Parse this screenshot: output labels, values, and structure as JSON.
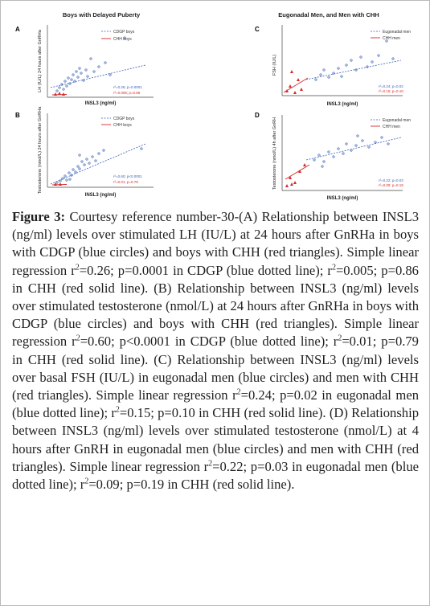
{
  "figure": {
    "panels": [
      {
        "id": "A",
        "section_title": "Boys with Delayed Puberty",
        "xlabel": "INSL3 (ng/ml)",
        "ylabel": "LH (IU/L) 24 hours after GnRHa",
        "legend": [
          "CDGP boys",
          "CHH boys"
        ],
        "stats": [
          "r²=0.26; p=0.0001",
          "r²=0.005; p=0.86"
        ]
      },
      {
        "id": "B",
        "section_title": "",
        "xlabel": "INSL3 (ng/ml)",
        "ylabel": "Testosterone (nmol/L) 24 hours after GnRHa",
        "legend": [
          "CDGP boys",
          "CHH boys"
        ],
        "stats": [
          "r²=0.60; p<0.0001",
          "r²=0.01; p=0.79"
        ]
      },
      {
        "id": "C",
        "section_title": "Eugonadal Men, and Men with CHH",
        "xlabel": "INSL3 (ng/ml)",
        "ylabel": "FSH (IU/L)",
        "legend": [
          "Eugonadal men",
          "CHH men"
        ],
        "stats": [
          "r²=0.24; p=0.02",
          "r²=0.15; p=0.10"
        ]
      },
      {
        "id": "D",
        "section_title": "",
        "xlabel": "INSL3 (ng/ml)",
        "ylabel": "Testosterone (nmol/L) 4h after GnRH",
        "legend": [
          "Eugonadal men",
          "CHH men"
        ],
        "stats": [
          "r²=0.22; p=0.03",
          "r²=0.09; p=0.19"
        ]
      }
    ]
  },
  "caption": {
    "label": "Figure 3:",
    "r2": "r2",
    "parts": [
      " Courtesy reference number-30-(A) Relationship between INSL3 (ng/ml) levels over stimulated LH (IU/L) at 24 hours after GnRHa in boys with CDGP (blue circles) and boys with CHH (red triangles). Simple linear regression ",
      "=0.26; p=0.0001 in CDGP (blue dotted line); ",
      "=0.005; p=0.86 in CHH (red solid line). (B) Relationship between INSL3 (ng/ml) levels over stimulated testosterone (nmol/L) at 24 hours after GnRHa in boys with CDGP (blue circles) and boys with CHH (red triangles). Simple linear regression ",
      "=0.60; p<0.0001 in CDGP (blue dotted line); ",
      "=0.01; p=0.79 in CHH (red solid line). (C) Relationship between INSL3 (ng/ml) levels over basal FSH (IU/L) in eugonadal men (blue circles) and men with CHH (red triangles). Simple linear regression ",
      "=0.24; p=0.02 in eugonadal men (blue dotted line); ",
      "=0.15; p=0.10 in CHH (red solid line). (D) Relationship between INSL3 (ng/ml) levels over stimulated testosterone (nmol/L) at 4 hours after GnRH in eugonadal men (blue circles) and men with CHH (red triangles). Simple linear regression ",
      "=0.22; p=0.03 in eugonadal men (blue dotted line); ",
      "=0.09; p=0.19 in CHH (red solid line)."
    ]
  },
  "colors": {
    "blue": "#3a5fb5",
    "red": "#d42a2a",
    "text": "#1f1f1f"
  }
}
